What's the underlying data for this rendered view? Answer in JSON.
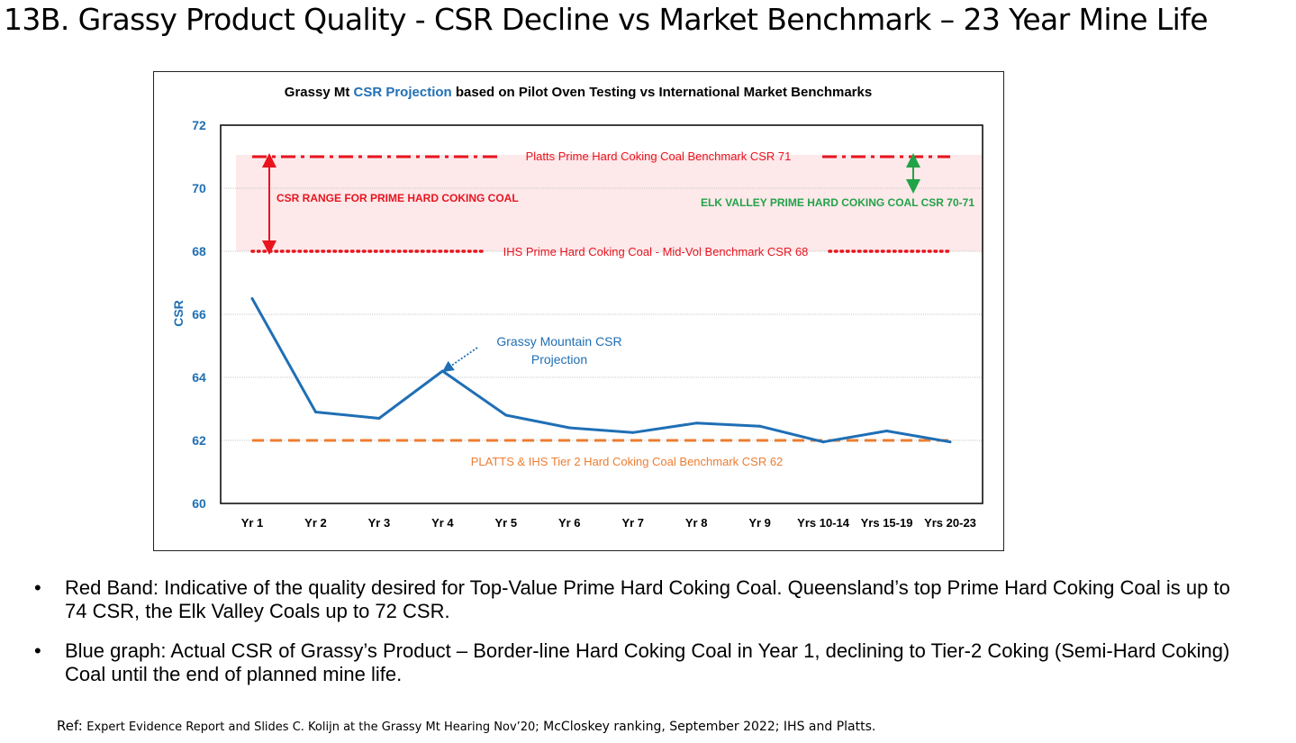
{
  "slide": {
    "title": "13B. Grassy Product Quality - CSR Decline vs Market Benchmark – 23 Year Mine Life",
    "bullets": [
      "Red Band: Indicative of the quality desired for Top-Value Prime Hard Coking Coal. Queensland’s top Prime Hard Coking Coal is up to 74 CSR, the Elk Valley Coals up to 72 CSR.",
      "Blue graph: Actual CSR of Grassy’s Product – Border-line Hard Coking Coal in Year 1, declining to Tier-2 Coking (Semi-Hard Coking) Coal until the end of planned mine life."
    ],
    "bullet_symbol": "•",
    "ref_prefix": "Ref:",
    "ref_small": "Expert Evidence Report and Slides  C. Kolijn at the Grassy Mt Hearing Nov’20;",
    "ref_rest": "McCloskey ranking, September 2022; IHS and Platts."
  },
  "chart_data": {
    "type": "line",
    "title_parts": [
      "Grassy Mt ",
      "CSR Projection",
      " based on Pilot Oven Testing vs International Market Benchmarks"
    ],
    "ylabel": "CSR",
    "xlabel": "",
    "ylim": [
      60,
      72
    ],
    "yticks": [
      60,
      62,
      64,
      66,
      68,
      70,
      72
    ],
    "grid": true,
    "categories": [
      "Yr 1",
      "Yr 2",
      "Yr 3",
      "Yr 4",
      "Yr 5",
      "Yr 6",
      "Yr 7",
      "Yr 8",
      "Yr 9",
      "Yrs 10-14",
      "Yrs 15-19",
      "Yrs 20-23"
    ],
    "series": [
      {
        "name": "Grassy Mountain CSR Projection",
        "color": "#1f6fb5",
        "values": [
          66.5,
          62.9,
          62.7,
          64.2,
          62.8,
          62.4,
          62.25,
          62.55,
          62.45,
          61.95,
          62.3,
          61.95
        ]
      }
    ],
    "band": {
      "from": 68,
      "to": 71,
      "color": "#fde8ea"
    },
    "benchmarks": [
      {
        "name": "platts",
        "value": 71,
        "label": "Platts Prime Hard Coking Coal Benchmark CSR 71",
        "color": "#e8141e",
        "style": "dashdot"
      },
      {
        "name": "ihs",
        "value": 68,
        "label": "IHS Prime Hard Coking Coal - Mid-Vol Benchmark CSR 68",
        "color": "#e8141e",
        "style": "dotted"
      },
      {
        "name": "tier2",
        "value": 62,
        "label": "PLATTS & IHS Tier 2 Hard Coking Coal Benchmark CSR 62",
        "color": "#ed7d31",
        "style": "dashed"
      }
    ],
    "annotations": {
      "csr_range": {
        "text": "CSR RANGE FOR PRIME HARD COKING COAL",
        "color": "#e8141e",
        "from": 68,
        "to": 71
      },
      "elk_valley": {
        "text": "ELK VALLEY PRIME HARD COKING COAL CSR 70-71",
        "color": "#22a348",
        "from": 70,
        "to": 71
      },
      "grassy_label": {
        "lines": [
          "Grassy Mountain CSR",
          "Projection"
        ],
        "color": "#1f6fb5",
        "points_to": "Yr 4"
      }
    },
    "colors": {
      "accent": "#1f6fb5",
      "title_text": "#000000",
      "axis": "#000000",
      "grid": "#c8c8c8"
    }
  }
}
